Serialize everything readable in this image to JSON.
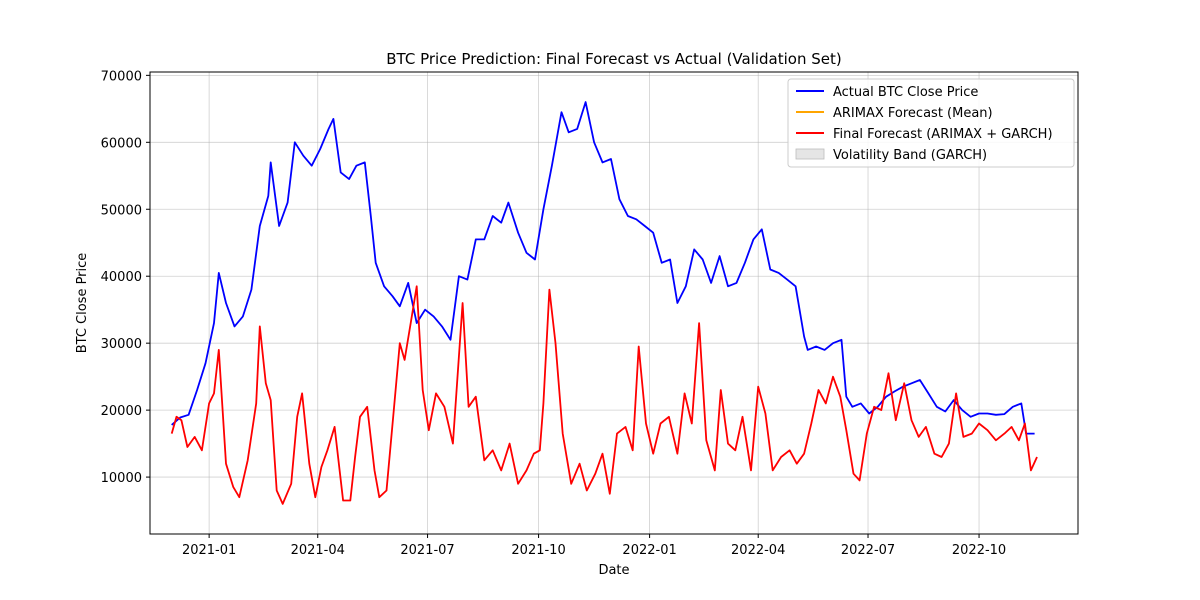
{
  "chart_data": {
    "type": "line",
    "title": "BTC Price Prediction: Final Forecast vs Actual (Validation Set)",
    "xlabel": "Date",
    "ylabel": "BTC Close Price",
    "xlim": [
      "2020-11-13",
      "2022-12-22"
    ],
    "ylim": [
      1500,
      70500
    ],
    "x_ticks": [
      "2021-01",
      "2021-04",
      "2021-07",
      "2021-10",
      "2022-01",
      "2022-04",
      "2022-07",
      "2022-10"
    ],
    "y_ticks": [
      10000,
      20000,
      30000,
      40000,
      50000,
      60000,
      70000
    ],
    "grid": true,
    "legend_position": "top-right",
    "series": [
      {
        "name": "Actual BTC Close Price",
        "color": "#0000ff",
        "x": [
          "2020-12-01",
          "2020-12-08",
          "2020-12-15",
          "2020-12-22",
          "2020-12-29",
          "2021-01-05",
          "2021-01-09",
          "2021-01-15",
          "2021-01-22",
          "2021-01-29",
          "2021-02-05",
          "2021-02-12",
          "2021-02-19",
          "2021-02-21",
          "2021-02-28",
          "2021-03-07",
          "2021-03-13",
          "2021-03-20",
          "2021-03-27",
          "2021-04-03",
          "2021-04-10",
          "2021-04-14",
          "2021-04-20",
          "2021-04-27",
          "2021-05-03",
          "2021-05-10",
          "2021-05-15",
          "2021-05-19",
          "2021-05-26",
          "2021-06-02",
          "2021-06-08",
          "2021-06-15",
          "2021-06-22",
          "2021-06-29",
          "2021-07-06",
          "2021-07-13",
          "2021-07-20",
          "2021-07-27",
          "2021-08-03",
          "2021-08-10",
          "2021-08-17",
          "2021-08-24",
          "2021-08-31",
          "2021-09-06",
          "2021-09-14",
          "2021-09-21",
          "2021-09-28",
          "2021-10-05",
          "2021-10-12",
          "2021-10-20",
          "2021-10-26",
          "2021-11-02",
          "2021-11-09",
          "2021-11-16",
          "2021-11-23",
          "2021-11-30",
          "2021-12-07",
          "2021-12-14",
          "2021-12-21",
          "2021-12-28",
          "2022-01-04",
          "2022-01-11",
          "2022-01-18",
          "2022-01-24",
          "2022-01-31",
          "2022-02-07",
          "2022-02-14",
          "2022-02-21",
          "2022-02-28",
          "2022-03-07",
          "2022-03-14",
          "2022-03-21",
          "2022-03-28",
          "2022-04-04",
          "2022-04-11",
          "2022-04-18",
          "2022-04-25",
          "2022-05-02",
          "2022-05-09",
          "2022-05-12",
          "2022-05-19",
          "2022-05-26",
          "2022-06-02",
          "2022-06-09",
          "2022-06-13",
          "2022-06-18",
          "2022-06-25",
          "2022-07-02",
          "2022-07-09",
          "2022-07-16",
          "2022-07-23",
          "2022-07-30",
          "2022-08-06",
          "2022-08-13",
          "2022-08-20",
          "2022-08-27",
          "2022-09-03",
          "2022-09-10",
          "2022-09-17",
          "2022-09-24",
          "2022-10-01",
          "2022-10-08",
          "2022-10-15",
          "2022-10-22",
          "2022-10-29",
          "2022-11-05",
          "2022-11-09",
          "2022-11-16"
        ],
        "y": [
          17800,
          18900,
          19300,
          23000,
          27000,
          33000,
          40500,
          36000,
          32500,
          34000,
          38000,
          47500,
          52000,
          57000,
          47500,
          51000,
          60000,
          58000,
          56500,
          59000,
          62000,
          63500,
          55500,
          54500,
          56500,
          57000,
          49000,
          42000,
          38500,
          37000,
          35500,
          39000,
          33000,
          35000,
          34000,
          32500,
          30500,
          40000,
          39500,
          45500,
          45500,
          49000,
          48000,
          51000,
          46500,
          43500,
          42500,
          50000,
          56500,
          64500,
          61500,
          62000,
          66000,
          60000,
          57000,
          57500,
          51500,
          49000,
          48500,
          47500,
          46500,
          42000,
          42500,
          36000,
          38500,
          44000,
          42500,
          39000,
          43000,
          38500,
          39000,
          42000,
          45500,
          47000,
          41000,
          40500,
          39500,
          38500,
          31000,
          29000,
          29500,
          29000,
          30000,
          30500,
          22000,
          20500,
          21000,
          19500,
          20500,
          22000,
          22800,
          23500,
          24000,
          24500,
          22500,
          20500,
          19800,
          21500,
          20000,
          19000,
          19500,
          19500,
          19300,
          19400,
          20500,
          21000,
          16500,
          16500
        ]
      },
      {
        "name": "ARIMAX Forecast (Mean)",
        "color": "#ffa500",
        "x": [],
        "y": []
      },
      {
        "name": "Final Forecast (ARIMAX + GARCH)",
        "color": "#ff0000",
        "x": [
          "2020-12-01",
          "2020-12-05",
          "2020-12-09",
          "2020-12-14",
          "2020-12-20",
          "2020-12-26",
          "2021-01-01",
          "2021-01-05",
          "2021-01-09",
          "2021-01-15",
          "2021-01-21",
          "2021-01-26",
          "2021-02-02",
          "2021-02-09",
          "2021-02-12",
          "2021-02-17",
          "2021-02-21",
          "2021-02-26",
          "2021-03-03",
          "2021-03-10",
          "2021-03-15",
          "2021-03-19",
          "2021-03-25",
          "2021-03-30",
          "2021-04-04",
          "2021-04-09",
          "2021-04-15",
          "2021-04-22",
          "2021-04-28",
          "2021-05-02",
          "2021-05-06",
          "2021-05-12",
          "2021-05-18",
          "2021-05-22",
          "2021-05-28",
          "2021-06-03",
          "2021-06-08",
          "2021-06-12",
          "2021-06-17",
          "2021-06-22",
          "2021-06-27",
          "2021-07-02",
          "2021-07-08",
          "2021-07-15",
          "2021-07-22",
          "2021-07-30",
          "2021-08-04",
          "2021-08-10",
          "2021-08-17",
          "2021-08-24",
          "2021-08-31",
          "2021-09-07",
          "2021-09-14",
          "2021-09-21",
          "2021-09-27",
          "2021-10-02",
          "2021-10-05",
          "2021-10-10",
          "2021-10-15",
          "2021-10-21",
          "2021-10-28",
          "2021-11-04",
          "2021-11-10",
          "2021-11-17",
          "2021-11-23",
          "2021-11-29",
          "2021-12-05",
          "2021-12-12",
          "2021-12-18",
          "2021-12-23",
          "2021-12-29",
          "2022-01-04",
          "2022-01-10",
          "2022-01-17",
          "2022-01-24",
          "2022-01-30",
          "2022-02-05",
          "2022-02-11",
          "2022-02-17",
          "2022-02-24",
          "2022-03-01",
          "2022-03-07",
          "2022-03-13",
          "2022-03-19",
          "2022-03-26",
          "2022-04-01",
          "2022-04-07",
          "2022-04-13",
          "2022-04-20",
          "2022-04-27",
          "2022-05-03",
          "2022-05-09",
          "2022-05-15",
          "2022-05-21",
          "2022-05-27",
          "2022-06-02",
          "2022-06-08",
          "2022-06-13",
          "2022-06-19",
          "2022-06-24",
          "2022-06-30",
          "2022-07-06",
          "2022-07-12",
          "2022-07-18",
          "2022-07-24",
          "2022-07-31",
          "2022-08-06",
          "2022-08-12",
          "2022-08-18",
          "2022-08-25",
          "2022-08-31",
          "2022-09-06",
          "2022-09-12",
          "2022-09-18",
          "2022-09-25",
          "2022-10-01",
          "2022-10-08",
          "2022-10-15",
          "2022-10-22",
          "2022-10-28",
          "2022-11-03",
          "2022-11-08",
          "2022-11-13",
          "2022-11-18"
        ],
        "y": [
          16500,
          19000,
          18500,
          14500,
          16000,
          14000,
          21000,
          22500,
          29000,
          12000,
          8500,
          7000,
          12500,
          21000,
          32500,
          24000,
          21500,
          8000,
          6000,
          9000,
          19000,
          22500,
          12000,
          7000,
          11500,
          14000,
          17500,
          6500,
          6500,
          13000,
          19000,
          20500,
          11000,
          7000,
          8000,
          20000,
          30000,
          27500,
          33000,
          38500,
          23000,
          17000,
          22500,
          20500,
          15000,
          36000,
          20500,
          22000,
          12500,
          14000,
          11000,
          15000,
          9000,
          11000,
          13500,
          14000,
          21000,
          38000,
          30000,
          16500,
          9000,
          12000,
          8000,
          10500,
          13500,
          7500,
          16500,
          17500,
          14000,
          29500,
          18000,
          13500,
          18000,
          19000,
          13500,
          22500,
          18000,
          33000,
          15500,
          11000,
          23000,
          15000,
          14000,
          19000,
          11000,
          23500,
          19500,
          11000,
          13000,
          14000,
          12000,
          13500,
          18000,
          23000,
          21000,
          25000,
          22000,
          17000,
          10500,
          9500,
          16500,
          20500,
          20000,
          25500,
          18500,
          24000,
          18500,
          16000,
          17500,
          13500,
          13000,
          15000,
          22500,
          16000,
          16500,
          18000,
          17000,
          15500,
          16500,
          17500,
          15500,
          18000,
          11000,
          13000
        ]
      },
      {
        "name": "Volatility Band (GARCH)",
        "color": "#d3d3d3",
        "x": [],
        "lower": [],
        "upper": []
      }
    ]
  }
}
